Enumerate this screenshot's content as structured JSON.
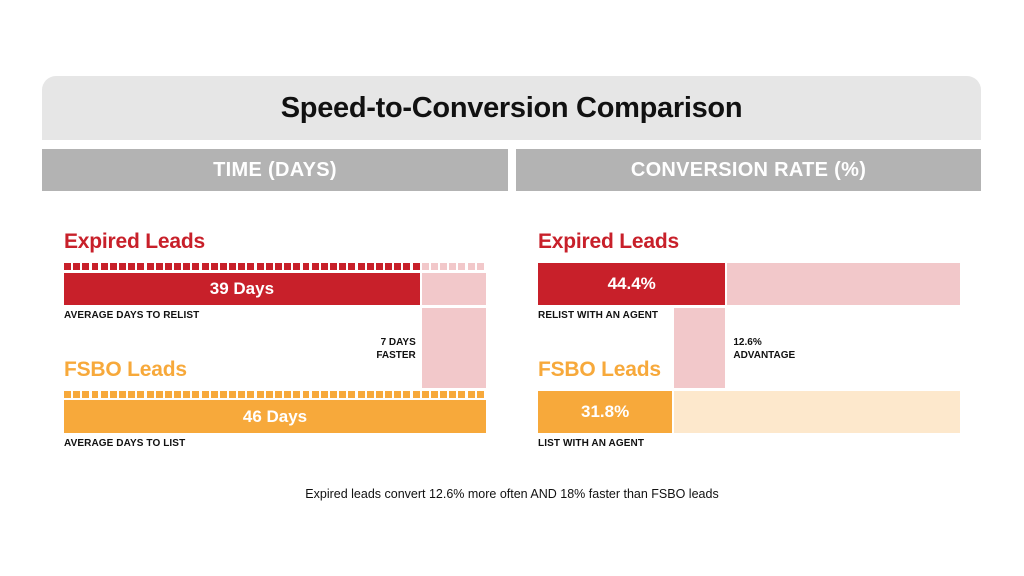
{
  "title": "Speed-to-Conversion Comparison",
  "footer": "Expired leads convert 12.6% more often AND 18% faster than FSBO leads",
  "colors": {
    "expired": "#c8202a",
    "expired_light": "#f2c8ca",
    "fsbo": "#f7a93b",
    "fsbo_light": "#fde8cc",
    "header_bg": "#b3b3b3",
    "title_bg": "#e6e6e6"
  },
  "chart_data": [
    {
      "type": "bar",
      "title": "TIME (DAYS)",
      "categories": [
        "Expired Leads",
        "FSBO Leads"
      ],
      "values": [
        39,
        46
      ],
      "value_labels": [
        "39 Days",
        "46 Days"
      ],
      "sublabels": [
        "AVERAGE DAYS TO RELIST",
        "AVERAGE DAYS TO LIST"
      ],
      "difference_label": [
        "7 DAYS",
        "FASTER"
      ],
      "xlim": [
        0,
        46
      ]
    },
    {
      "type": "bar",
      "title": "CONVERSION RATE (%)",
      "categories": [
        "Expired Leads",
        "FSBO Leads"
      ],
      "values": [
        44.4,
        31.8
      ],
      "value_labels": [
        "44.4%",
        "31.8%"
      ],
      "sublabels": [
        "RELIST WITH AN AGENT",
        "LIST WITH AN AGENT"
      ],
      "difference_label": [
        "12.6%",
        "ADVANTAGE"
      ],
      "xlim": [
        0,
        100
      ]
    }
  ]
}
